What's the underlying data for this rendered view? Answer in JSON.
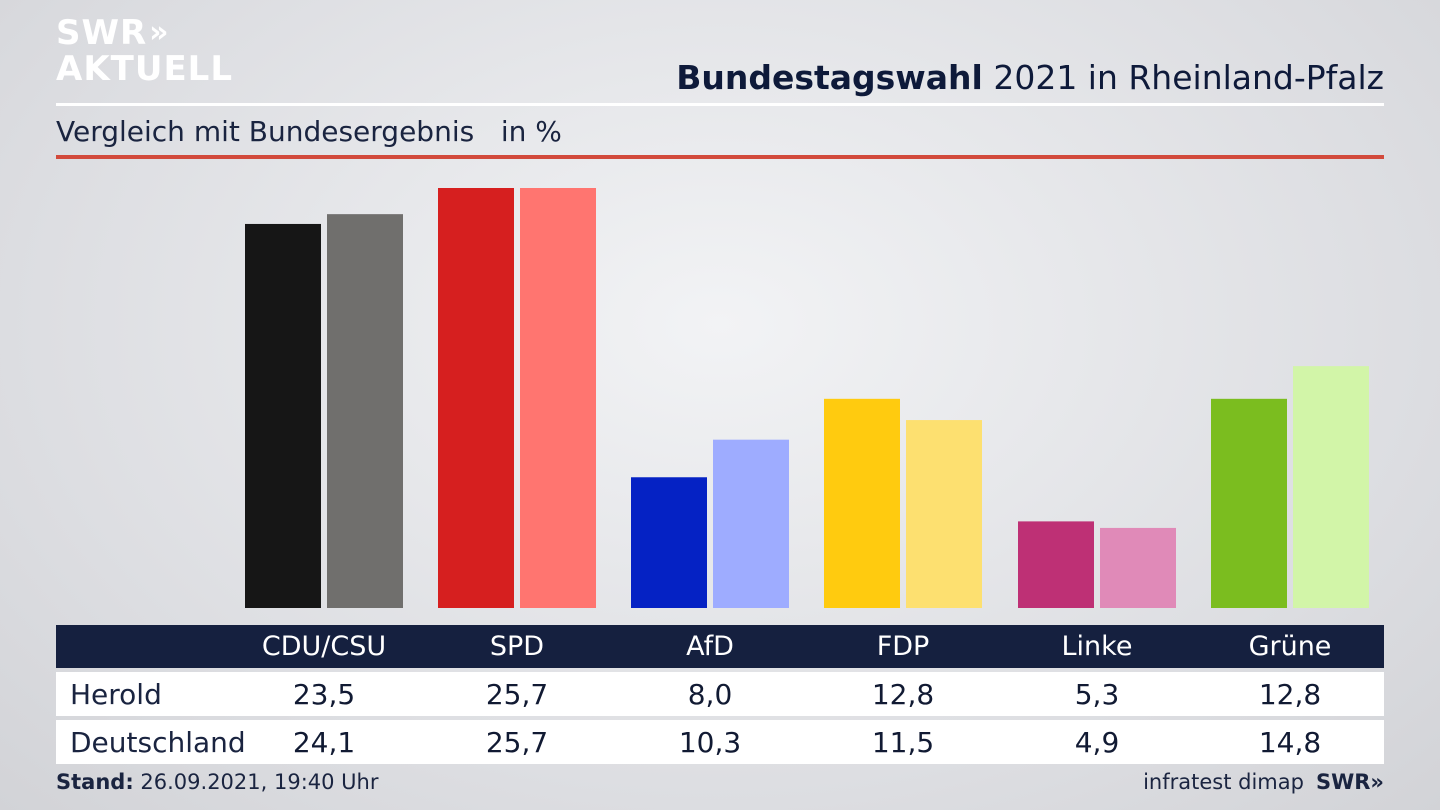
{
  "branding": {
    "logo_line1": "SWR",
    "logo_chevrons": "»",
    "logo_line2": "AKTUELL"
  },
  "header": {
    "title_bold": "Bundestagswahl",
    "title_rest": " 2021 in Rheinland-Pfalz",
    "subtitle": "Vergleich mit Bundesergebnis   in %"
  },
  "colors": {
    "accent_rule": "#d24a3c",
    "table_header_bg": "#15203f",
    "CDU/CSU": [
      "#161616",
      "#706f6d"
    ],
    "SPD": [
      "#d61f1f",
      "#ff7570"
    ],
    "AfD": [
      "#0522c4",
      "#9eacff"
    ],
    "FDP": [
      "#ffcb0f",
      "#fde070"
    ],
    "Linke": [
      "#be3075",
      "#e08ab8"
    ],
    "Grüne": [
      "#7bbd1f",
      "#d2f5a8"
    ]
  },
  "chart_data": {
    "type": "bar",
    "categories": [
      "CDU/CSU",
      "SPD",
      "AfD",
      "FDP",
      "Linke",
      "Grüne"
    ],
    "series": [
      {
        "name": "Herold",
        "values": [
          23.5,
          25.7,
          8.0,
          12.8,
          5.3,
          12.8
        ]
      },
      {
        "name": "Deutschland",
        "values": [
          24.1,
          25.7,
          10.3,
          11.5,
          4.9,
          14.8
        ]
      }
    ],
    "ylim": [
      0,
      25.7
    ],
    "grid": false,
    "legend": "table below chart"
  },
  "table": {
    "headers": [
      "CDU/CSU",
      "SPD",
      "AfD",
      "FDP",
      "Linke",
      "Grüne"
    ],
    "rows": [
      {
        "label": "Herold",
        "values": [
          "23,5",
          "25,7",
          "8,0",
          "12,8",
          "5,3",
          "12,8"
        ]
      },
      {
        "label": "Deutschland",
        "values": [
          "24,1",
          "25,7",
          "10,3",
          "11,5",
          "4,9",
          "14,8"
        ]
      }
    ]
  },
  "footer": {
    "stand_label": "Stand:",
    "stand_value": " 26.09.2021, 19:40 Uhr",
    "source": "infratest dimap",
    "brand": "SWR»"
  }
}
